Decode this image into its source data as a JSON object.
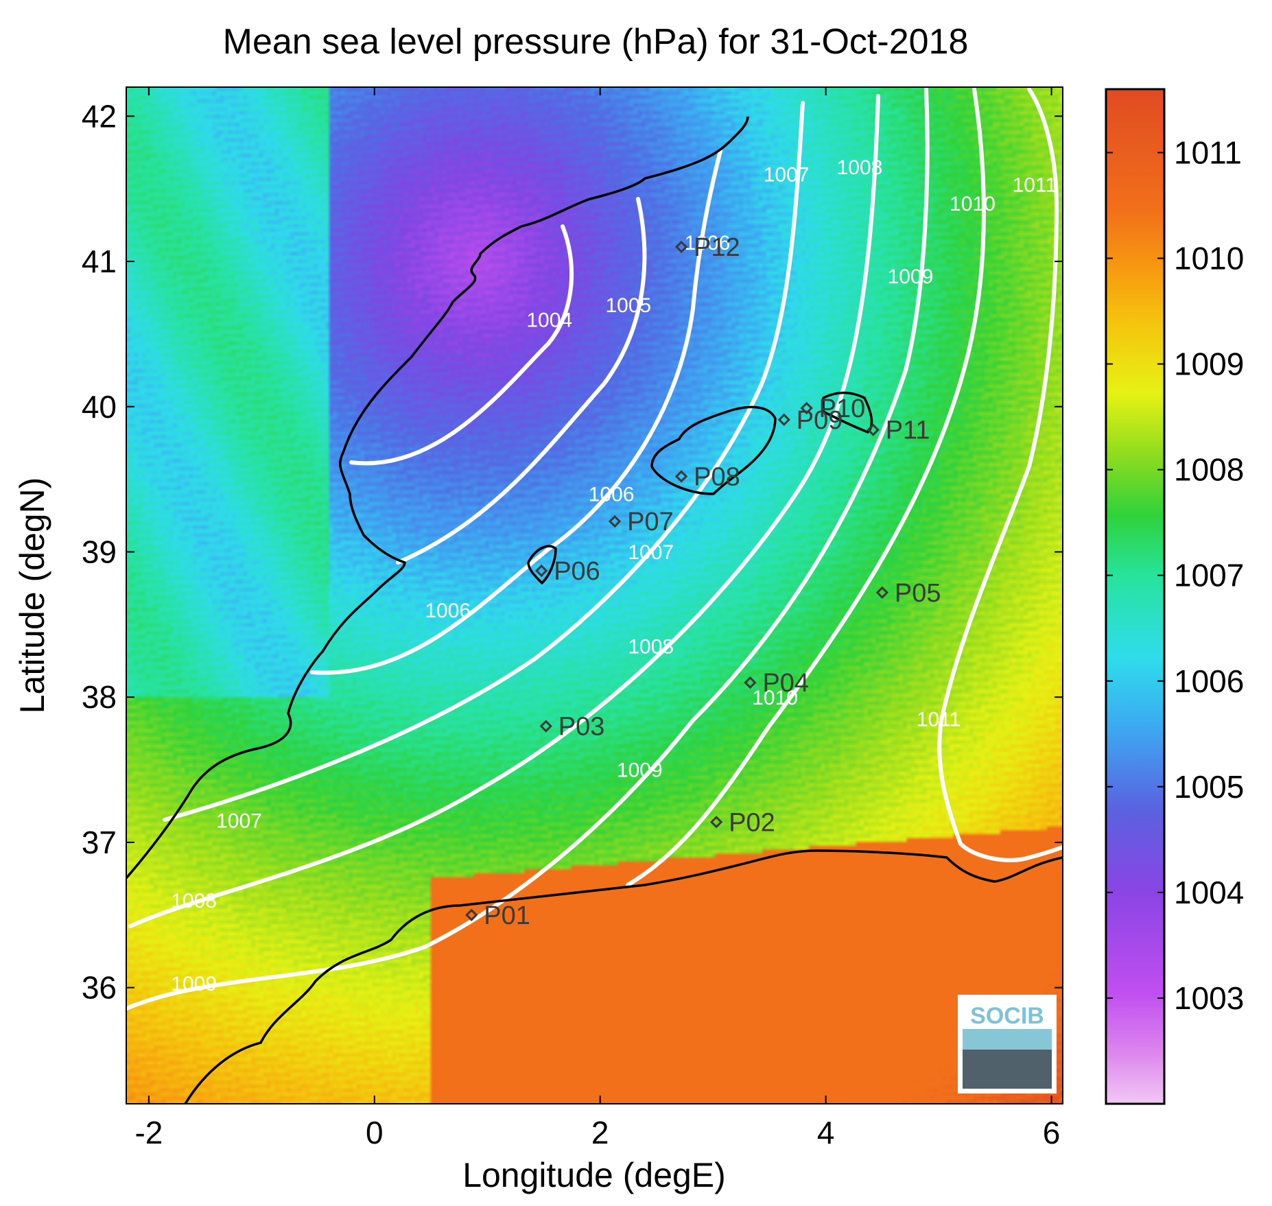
{
  "title": "Mean sea level pressure (hPa) for 31-Oct-2018",
  "x_axis": {
    "label": "Longitude (degE)",
    "ticks": [
      "-2",
      "0",
      "2",
      "4",
      "6"
    ]
  },
  "y_axis": {
    "label": "Latitude (degN)",
    "ticks": [
      "42",
      "41",
      "40",
      "39",
      "38",
      "37",
      "36"
    ]
  },
  "colorbar": {
    "ticks": [
      "1011",
      "1010",
      "1009",
      "1008",
      "1007",
      "1006",
      "1005",
      "1004",
      "1003"
    ]
  },
  "logo": {
    "text": "SOCIB"
  },
  "colors": {
    "contour": "#ffffff",
    "coastline": "#000000",
    "station_marker": "#3a3a3a"
  },
  "chart_data": {
    "type": "heatmap",
    "title": "Mean sea level pressure (hPa) for 31-Oct-2018",
    "xlabel": "Longitude (degE)",
    "ylabel": "Latitude (degN)",
    "xlim": [
      -2.2,
      6.1
    ],
    "ylim": [
      35.2,
      42.2
    ],
    "colorbar_range": [
      1002,
      1011.6
    ],
    "colormap": "purple-blue-cyan-green-yellow-orange-red",
    "contour_levels": [
      1004,
      1005,
      1006,
      1007,
      1008,
      1009,
      1010,
      1011
    ],
    "contour_labels": [
      {
        "text": "1004",
        "lon": 1.55,
        "lat": 40.55
      },
      {
        "text": "1005",
        "lon": 2.25,
        "lat": 40.65
      },
      {
        "text": "1006",
        "lon": 2.95,
        "lat": 41.08
      },
      {
        "text": "1006",
        "lon": 2.1,
        "lat": 39.35
      },
      {
        "text": "1006",
        "lon": 0.65,
        "lat": 38.55
      },
      {
        "text": "1007",
        "lon": 3.65,
        "lat": 41.55
      },
      {
        "text": "1007",
        "lon": 2.45,
        "lat": 38.95
      },
      {
        "text": "1007",
        "lon": -1.2,
        "lat": 37.1
      },
      {
        "text": "1008",
        "lon": 4.3,
        "lat": 41.6
      },
      {
        "text": "1008",
        "lon": 2.45,
        "lat": 38.3
      },
      {
        "text": "1008",
        "lon": -1.6,
        "lat": 36.55
      },
      {
        "text": "1009",
        "lon": 4.75,
        "lat": 40.85
      },
      {
        "text": "1009",
        "lon": 2.35,
        "lat": 37.45
      },
      {
        "text": "1009",
        "lon": -1.6,
        "lat": 35.98
      },
      {
        "text": "1010",
        "lon": 5.3,
        "lat": 41.35
      },
      {
        "text": "1010",
        "lon": 3.55,
        "lat": 37.95
      },
      {
        "text": "1011",
        "lon": 5.85,
        "lat": 41.48
      },
      {
        "text": "1011",
        "lon": 5.0,
        "lat": 37.8
      }
    ],
    "stations": [
      {
        "name": "P01",
        "lon": 0.86,
        "lat": 36.5
      },
      {
        "name": "P02",
        "lon": 3.03,
        "lat": 37.14
      },
      {
        "name": "P03",
        "lon": 1.52,
        "lat": 37.8
      },
      {
        "name": "P04",
        "lon": 3.33,
        "lat": 38.1
      },
      {
        "name": "P05",
        "lon": 4.5,
        "lat": 38.72
      },
      {
        "name": "P06",
        "lon": 1.48,
        "lat": 38.87
      },
      {
        "name": "P07",
        "lon": 2.13,
        "lat": 39.21
      },
      {
        "name": "P08",
        "lon": 2.72,
        "lat": 39.52
      },
      {
        "name": "P09",
        "lon": 3.63,
        "lat": 39.91
      },
      {
        "name": "P10",
        "lon": 3.83,
        "lat": 39.99
      },
      {
        "name": "P11",
        "lon": 4.42,
        "lat": 39.84
      },
      {
        "name": "P12",
        "lon": 2.72,
        "lat": 41.1
      }
    ]
  }
}
